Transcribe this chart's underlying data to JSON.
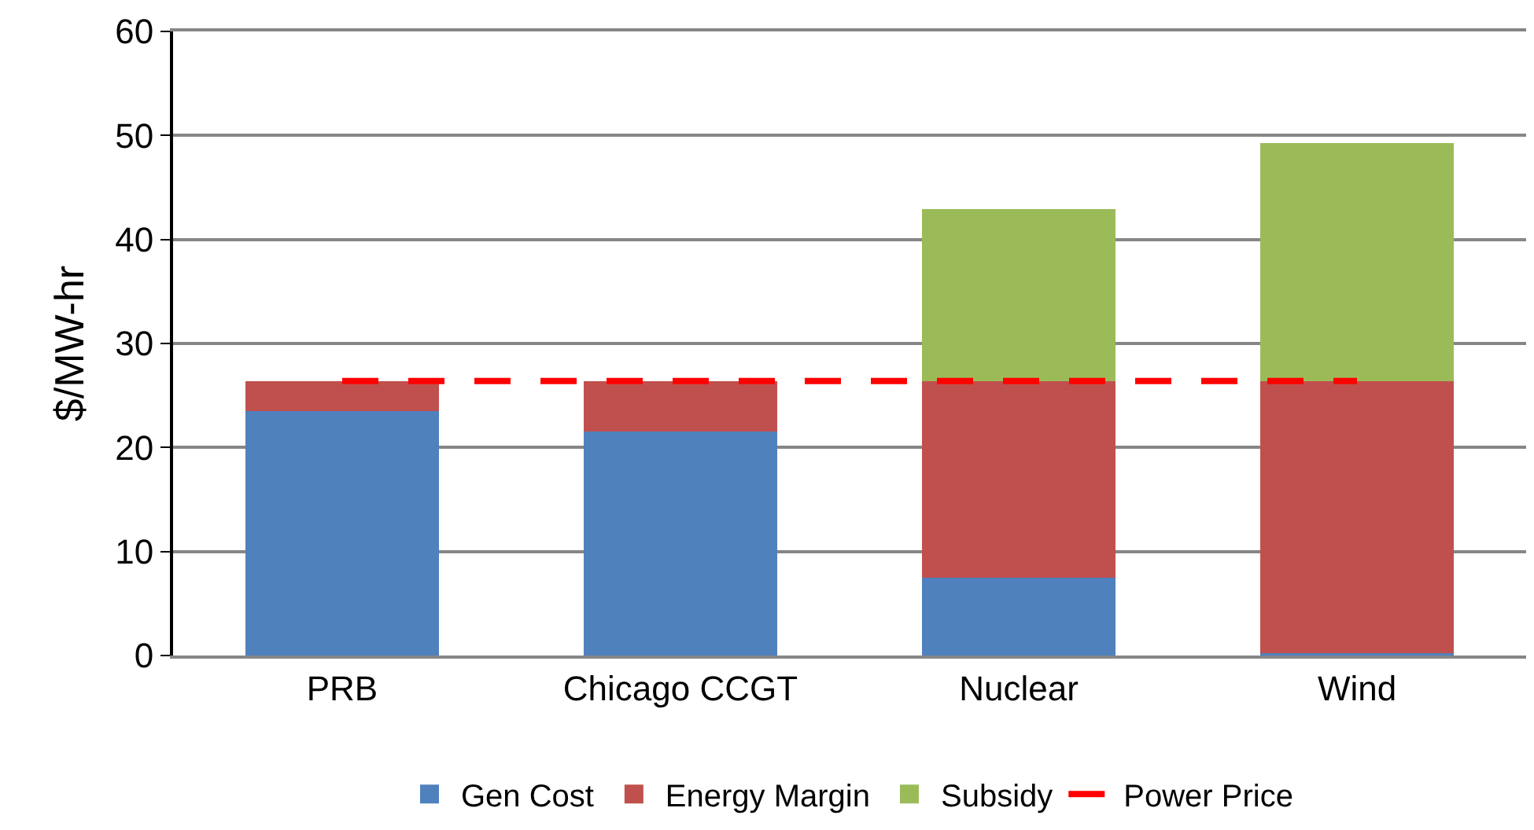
{
  "chart_data": {
    "type": "bar",
    "stacked": true,
    "ylabel": "$/MW-hr",
    "categories": [
      "PRB",
      "Chicago CCGT",
      "Nuclear",
      "Wind"
    ],
    "series": [
      {
        "name": "Gen Cost",
        "color": "#4f81bd",
        "values": [
          23.5,
          21.5,
          7.5,
          0.2
        ]
      },
      {
        "name": "Energy Margin",
        "color": "#c0504d",
        "values": [
          2.9,
          4.9,
          18.9,
          26.2
        ]
      },
      {
        "name": "Subsidy",
        "color": "#9bbb59",
        "values": [
          null,
          null,
          16.5,
          22.9
        ]
      },
      {
        "name": "Power Price",
        "type": "line",
        "color": "#ff0000",
        "line_style": "dashed",
        "marker": "none",
        "values": [
          26.4,
          26.4,
          26.4,
          26.4
        ]
      }
    ],
    "ylim": [
      0,
      60
    ],
    "yticks": [
      0,
      10,
      20,
      30,
      40,
      50,
      60
    ],
    "grid": "y",
    "legend": "bottom"
  }
}
